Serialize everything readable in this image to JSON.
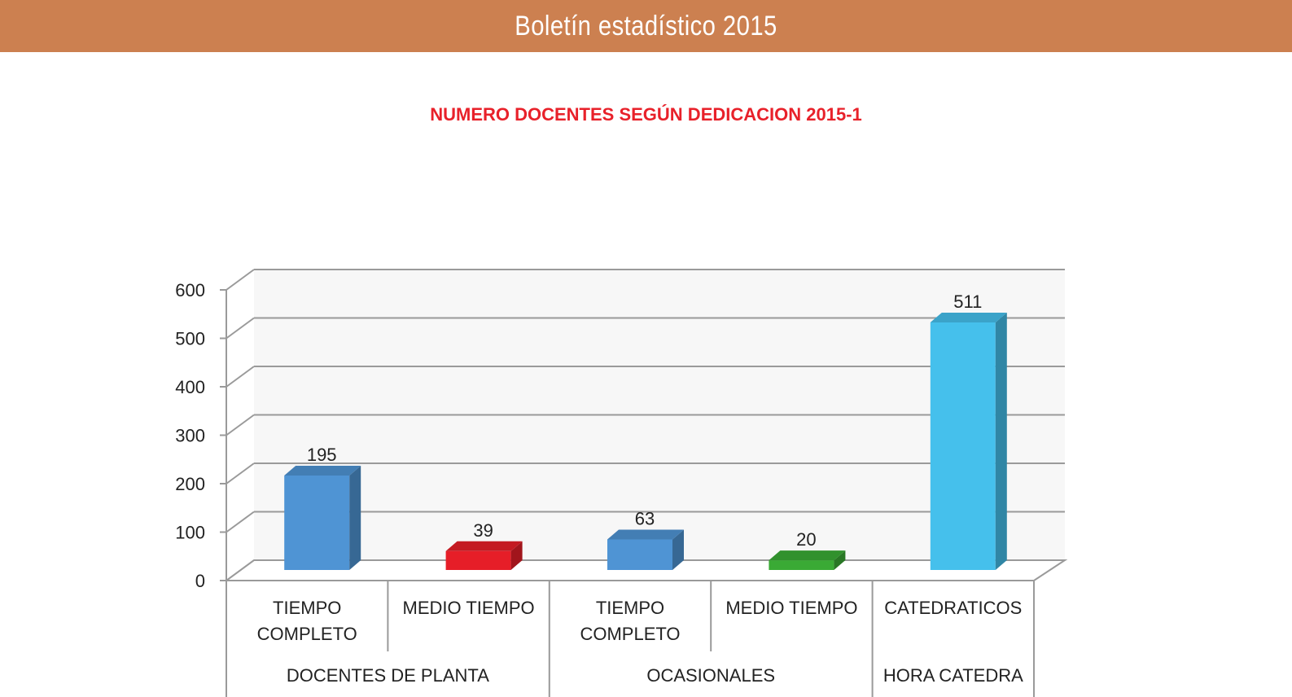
{
  "header": {
    "title": "Boletín estadístico 2015"
  },
  "chart_data": {
    "type": "bar",
    "title": "NUMERO DOCENTES SEGÚN DEDICACION 2015-1",
    "categories": [
      "TIEMPO COMPLETO",
      "MEDIO TIEMPO",
      "TIEMPO COMPLETO",
      "MEDIO TIEMPO",
      "CATEDRATICOS"
    ],
    "category_lines": [
      [
        "TIEMPO",
        "COMPLETO"
      ],
      [
        "MEDIO TIEMPO"
      ],
      [
        "TIEMPO",
        "COMPLETO"
      ],
      [
        "MEDIO TIEMPO"
      ],
      [
        "CATEDRATICOS"
      ]
    ],
    "groups": [
      {
        "label": "DOCENTES DE PLANTA",
        "span": 2
      },
      {
        "label": "OCASIONALES",
        "span": 2
      },
      {
        "label": "HORA CATEDRA",
        "span": 1
      }
    ],
    "values": [
      195,
      39,
      63,
      20,
      511
    ],
    "data_labels": [
      "195",
      "39",
      "63",
      "20",
      "511"
    ],
    "colors": [
      "#4F94D4",
      "#E61E28",
      "#4F94D4",
      "#3AAA35",
      "#45C0EC"
    ],
    "ylim": [
      0,
      600
    ],
    "yticks": [
      0,
      100,
      200,
      300,
      400,
      500,
      600
    ],
    "grid": true,
    "style": "3d-column",
    "xlabel": "",
    "ylabel": ""
  }
}
